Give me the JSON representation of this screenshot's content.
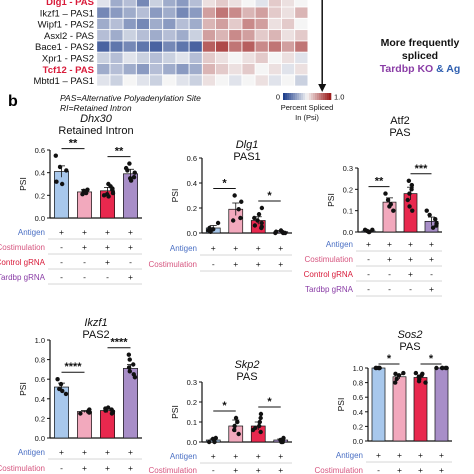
{
  "colors": {
    "antigen": "#4a6fc4",
    "costim": "#d6557f",
    "control": "#d81b3a",
    "tardbp": "#8a3da6",
    "bar_antigen": "#a8c8ec",
    "bar_costim": "#f2a9bd",
    "bar_control": "#e8284e",
    "bar_tardbp": "#a88ec8",
    "heat_low": "#1f3f8c",
    "heat_high": "#9c1f1f"
  },
  "heatmap": {
    "genes": [
      {
        "name": "Dlg1 - PAS",
        "highlight": true
      },
      {
        "name": "Ikzf1 – PAS1",
        "highlight": false
      },
      {
        "name": "Wipf1 - PAS2",
        "highlight": false
      },
      {
        "name": "Asxl2 - PAS",
        "highlight": false
      },
      {
        "name": "Bace1 - PAS2",
        "highlight": false
      },
      {
        "name": "Xpr1 - PAS2",
        "highlight": false
      },
      {
        "name": "Tcf12 - PAS",
        "highlight": true
      },
      {
        "name": "Mbtd1 – PAS1",
        "highlight": false
      }
    ],
    "values": [
      [
        0.45,
        0.3,
        0.35,
        0.2,
        0.4,
        0.3,
        0.25,
        0.35,
        0.55,
        0.6,
        0.55,
        0.5,
        0.45,
        0.6,
        0.55,
        0.5
      ],
      [
        0.2,
        0.25,
        0.3,
        0.35,
        0.25,
        0.3,
        0.2,
        0.25,
        0.7,
        0.8,
        0.75,
        0.65,
        0.7,
        0.6,
        0.55,
        0.65
      ],
      [
        0.3,
        0.35,
        0.25,
        0.2,
        0.3,
        0.25,
        0.35,
        0.3,
        0.65,
        0.7,
        0.6,
        0.75,
        0.7,
        0.55,
        0.6,
        0.5
      ],
      [
        0.35,
        0.3,
        0.4,
        0.35,
        0.3,
        0.35,
        0.3,
        0.4,
        0.7,
        0.65,
        0.75,
        0.7,
        0.6,
        0.65,
        0.55,
        0.6
      ],
      [
        0.1,
        0.15,
        0.2,
        0.15,
        0.1,
        0.2,
        0.15,
        0.1,
        0.85,
        0.9,
        0.8,
        0.85,
        0.75,
        0.8,
        0.7,
        0.8
      ],
      [
        0.4,
        0.35,
        0.45,
        0.4,
        0.35,
        0.4,
        0.45,
        0.35,
        0.6,
        0.55,
        0.5,
        0.55,
        0.6,
        0.5,
        0.55,
        0.45
      ],
      [
        0.3,
        0.35,
        0.3,
        0.25,
        0.35,
        0.3,
        0.25,
        0.3,
        0.65,
        0.6,
        0.55,
        0.6,
        0.5,
        0.55,
        0.45,
        0.55
      ],
      [
        0.45,
        0.4,
        0.5,
        0.45,
        0.4,
        0.5,
        0.45,
        0.4,
        0.55,
        0.5,
        0.45,
        0.5,
        0.55,
        0.45,
        0.5,
        0.4
      ]
    ],
    "legend_min": "0",
    "legend_max": "1.0",
    "legend_label_1": "Percent Spliced",
    "legend_label_2": "In (Psi)",
    "footnote_1": "PAS=Alternative Polyadenylation Site",
    "footnote_2": "RI=Retained Intron",
    "side_text_1": "More frequently",
    "side_text_2": "spliced",
    "side_text_3a": "Tardbp KO",
    "side_text_3b": "&",
    "side_text_3c": "Ag"
  },
  "panel_letter": "b",
  "row_labels": {
    "antigen": "Antigen",
    "costim": "Costimulation",
    "control": "Control gRNA",
    "tardbp": "Tardbp gRNA"
  },
  "chart_data": [
    {
      "type": "bar",
      "title_italic": "Dhx30",
      "title_sub": "Retained Intron",
      "ylabel": "PSI",
      "ylim": [
        0,
        0.6
      ],
      "yticks": [
        "0.0",
        "0.2",
        "0.4",
        "0.6"
      ],
      "values": [
        0.41,
        0.23,
        0.24,
        0.39
      ],
      "errors": [
        0.05,
        0.02,
        0.03,
        0.04
      ],
      "points": [
        [
          0.55,
          0.42,
          0.32,
          0.3,
          0.45
        ],
        [
          0.24,
          0.22,
          0.21,
          0.25,
          0.23
        ],
        [
          0.2,
          0.3,
          0.22,
          0.25,
          0.21,
          0.28,
          0.19,
          0.26
        ],
        [
          0.44,
          0.36,
          0.33,
          0.48,
          0.4,
          0.35,
          0.42
        ]
      ],
      "significance": [
        {
          "from": 0,
          "to": 1,
          "label": "**"
        },
        {
          "from": 2,
          "to": 3,
          "label": "**"
        }
      ]
    },
    {
      "type": "bar",
      "title_italic": "Dlg1",
      "title_sub": "PAS1",
      "ylabel": "PSI",
      "ylim": [
        0,
        0.6
      ],
      "yticks": [
        "0.0",
        "0.2",
        "0.4",
        "0.6"
      ],
      "values": [
        0.04,
        0.19,
        0.1,
        0.01
      ],
      "errors": [
        0.02,
        0.05,
        0.03,
        0.01
      ],
      "points": [
        [
          0.01,
          0.08,
          0.02,
          0.04,
          0.03
        ],
        [
          0.12,
          0.3,
          0.25,
          0.1,
          0.19
        ],
        [
          0.15,
          0.05,
          0.12,
          0.08,
          0.2,
          0.06,
          0.1,
          0.04
        ],
        [
          0.0,
          0.01,
          0.0,
          0.02,
          0.0
        ]
      ],
      "significance": [
        {
          "from": 0,
          "to": 1,
          "label": "*"
        },
        {
          "from": 2,
          "to": 3,
          "label": "*"
        }
      ]
    },
    {
      "type": "bar",
      "title_italic": "",
      "title_plain": "Atf2",
      "title_sub": "PAS",
      "ylabel": "PSI",
      "ylim": [
        0,
        0.3
      ],
      "yticks": [
        "0.0",
        "0.1",
        "0.2",
        "0.3"
      ],
      "values": [
        0.005,
        0.14,
        0.18,
        0.05
      ],
      "errors": [
        0.003,
        0.02,
        0.03,
        0.02
      ],
      "points": [
        [
          0.0,
          0.01,
          0.0,
          0.005,
          0.01
        ],
        [
          0.18,
          0.1,
          0.15,
          0.13,
          0.12
        ],
        [
          0.24,
          0.2,
          0.15,
          0.12,
          0.22,
          0.18,
          0.1
        ],
        [
          0.08,
          0.02,
          0.1,
          0.04,
          0.03,
          0.06
        ]
      ],
      "significance": [
        {
          "from": 0,
          "to": 1,
          "label": "**"
        },
        {
          "from": 2,
          "to": 3,
          "label": "***"
        }
      ]
    },
    {
      "type": "bar",
      "title_italic": "Ikzf1",
      "title_sub": "PAS2",
      "ylabel": "PSI",
      "ylim": [
        0,
        1.0
      ],
      "yticks": [
        "0.0",
        "0.2",
        "0.4",
        "0.6",
        "0.8",
        "1.0"
      ],
      "values": [
        0.52,
        0.27,
        0.28,
        0.71
      ],
      "errors": [
        0.04,
        0.01,
        0.02,
        0.04
      ],
      "points": [
        [
          0.6,
          0.5,
          0.45,
          0.55,
          0.48
        ],
        [
          0.25,
          0.28,
          0.26,
          0.27,
          0.29
        ],
        [
          0.3,
          0.26,
          0.28,
          0.27,
          0.31,
          0.25,
          0.29
        ],
        [
          0.8,
          0.65,
          0.72,
          0.85,
          0.68,
          0.62,
          0.75
        ]
      ],
      "significance": [
        {
          "from": 0,
          "to": 1,
          "label": "****"
        },
        {
          "from": 2,
          "to": 3,
          "label": "****"
        }
      ]
    },
    {
      "type": "bar",
      "title_italic": "Skp2",
      "title_sub": "PAS",
      "ylabel": "PSI",
      "ylim": [
        0,
        0.3
      ],
      "yticks": [
        "0.0",
        "0.1",
        "0.2",
        "0.3"
      ],
      "values": [
        0.01,
        0.08,
        0.08,
        0.01
      ],
      "errors": [
        0.005,
        0.03,
        0.02,
        0.005
      ],
      "points": [
        [
          0.0,
          0.02,
          0.01,
          0.0,
          0.015
        ],
        [
          0.04,
          0.12,
          0.1,
          0.06,
          0.08
        ],
        [
          0.14,
          0.06,
          0.08,
          0.1,
          0.05,
          0.12,
          0.07
        ],
        [
          0.0,
          0.02,
          0.01,
          0.0,
          0.01
        ]
      ],
      "significance": [
        {
          "from": 0,
          "to": 1,
          "label": "*"
        },
        {
          "from": 2,
          "to": 3,
          "label": "*"
        }
      ]
    },
    {
      "type": "bar",
      "title_italic": "Sos2",
      "title_sub": "PAS",
      "ylabel": "PSI",
      "ylim": [
        0,
        1.0
      ],
      "yticks": [
        "0.0",
        "0.2",
        "0.4",
        "0.6",
        "0.8",
        "1.0"
      ],
      "values": [
        1.0,
        0.88,
        0.87,
        1.0
      ],
      "errors": [
        0.0,
        0.03,
        0.03,
        0.0
      ],
      "points": [
        [
          1.0,
          1.0,
          1.0,
          1.0,
          1.0
        ],
        [
          0.92,
          0.85,
          0.8,
          0.9,
          0.93
        ],
        [
          0.92,
          0.8,
          0.85,
          0.9,
          0.88,
          0.93,
          0.82
        ],
        [
          1.0,
          1.0,
          1.0,
          1.0,
          1.0
        ]
      ],
      "significance": [
        {
          "from": 0,
          "to": 1,
          "label": "*"
        },
        {
          "from": 2,
          "to": 3,
          "label": "*"
        }
      ]
    }
  ]
}
